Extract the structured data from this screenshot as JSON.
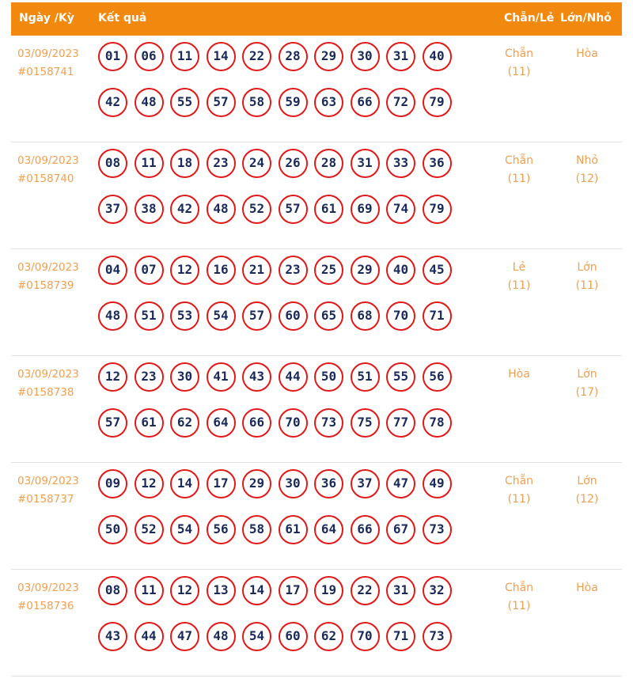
{
  "header": {
    "date": "Ngày /Kỳ",
    "result": "Kết quả",
    "even_odd": "Chẵn/Lẻ",
    "big_small": "Lớn/Nhỏ"
  },
  "colors": {
    "header_bg": "#f0890e",
    "accent_text": "#f0a050",
    "ball_border": "#e01818",
    "ball_text": "#1a2a5a"
  },
  "rows": [
    {
      "date": "03/09/2023",
      "draw": "#0158741",
      "numbers": [
        "01",
        "06",
        "11",
        "14",
        "22",
        "28",
        "29",
        "30",
        "31",
        "40",
        "42",
        "48",
        "55",
        "57",
        "58",
        "59",
        "63",
        "66",
        "72",
        "79"
      ],
      "even_odd": "Chẵn",
      "even_odd_count": "(11)",
      "big_small": "Hòa",
      "big_small_count": ""
    },
    {
      "date": "03/09/2023",
      "draw": "#0158740",
      "numbers": [
        "08",
        "11",
        "18",
        "23",
        "24",
        "26",
        "28",
        "31",
        "33",
        "36",
        "37",
        "38",
        "42",
        "48",
        "52",
        "57",
        "61",
        "69",
        "74",
        "79"
      ],
      "even_odd": "Chẵn",
      "even_odd_count": "(11)",
      "big_small": "Nhỏ",
      "big_small_count": "(12)"
    },
    {
      "date": "03/09/2023",
      "draw": "#0158739",
      "numbers": [
        "04",
        "07",
        "12",
        "16",
        "21",
        "23",
        "25",
        "29",
        "40",
        "45",
        "48",
        "51",
        "53",
        "54",
        "57",
        "60",
        "65",
        "68",
        "70",
        "71"
      ],
      "even_odd": "Lẻ",
      "even_odd_count": "(11)",
      "big_small": "Lớn",
      "big_small_count": "(11)"
    },
    {
      "date": "03/09/2023",
      "draw": "#0158738",
      "numbers": [
        "12",
        "23",
        "30",
        "41",
        "43",
        "44",
        "50",
        "51",
        "55",
        "56",
        "57",
        "61",
        "62",
        "64",
        "66",
        "70",
        "73",
        "75",
        "77",
        "78"
      ],
      "even_odd": "Hòa",
      "even_odd_count": "",
      "big_small": "Lớn",
      "big_small_count": "(17)"
    },
    {
      "date": "03/09/2023",
      "draw": "#0158737",
      "numbers": [
        "09",
        "12",
        "14",
        "17",
        "29",
        "30",
        "36",
        "37",
        "47",
        "49",
        "50",
        "52",
        "54",
        "56",
        "58",
        "61",
        "64",
        "66",
        "67",
        "73"
      ],
      "even_odd": "Chẵn",
      "even_odd_count": "(11)",
      "big_small": "Lớn",
      "big_small_count": "(12)"
    },
    {
      "date": "03/09/2023",
      "draw": "#0158736",
      "numbers": [
        "08",
        "11",
        "12",
        "13",
        "14",
        "17",
        "19",
        "22",
        "31",
        "32",
        "43",
        "44",
        "47",
        "48",
        "54",
        "60",
        "62",
        "70",
        "71",
        "73"
      ],
      "even_odd": "Chẵn",
      "even_odd_count": "(11)",
      "big_small": "Hòa",
      "big_small_count": ""
    }
  ]
}
